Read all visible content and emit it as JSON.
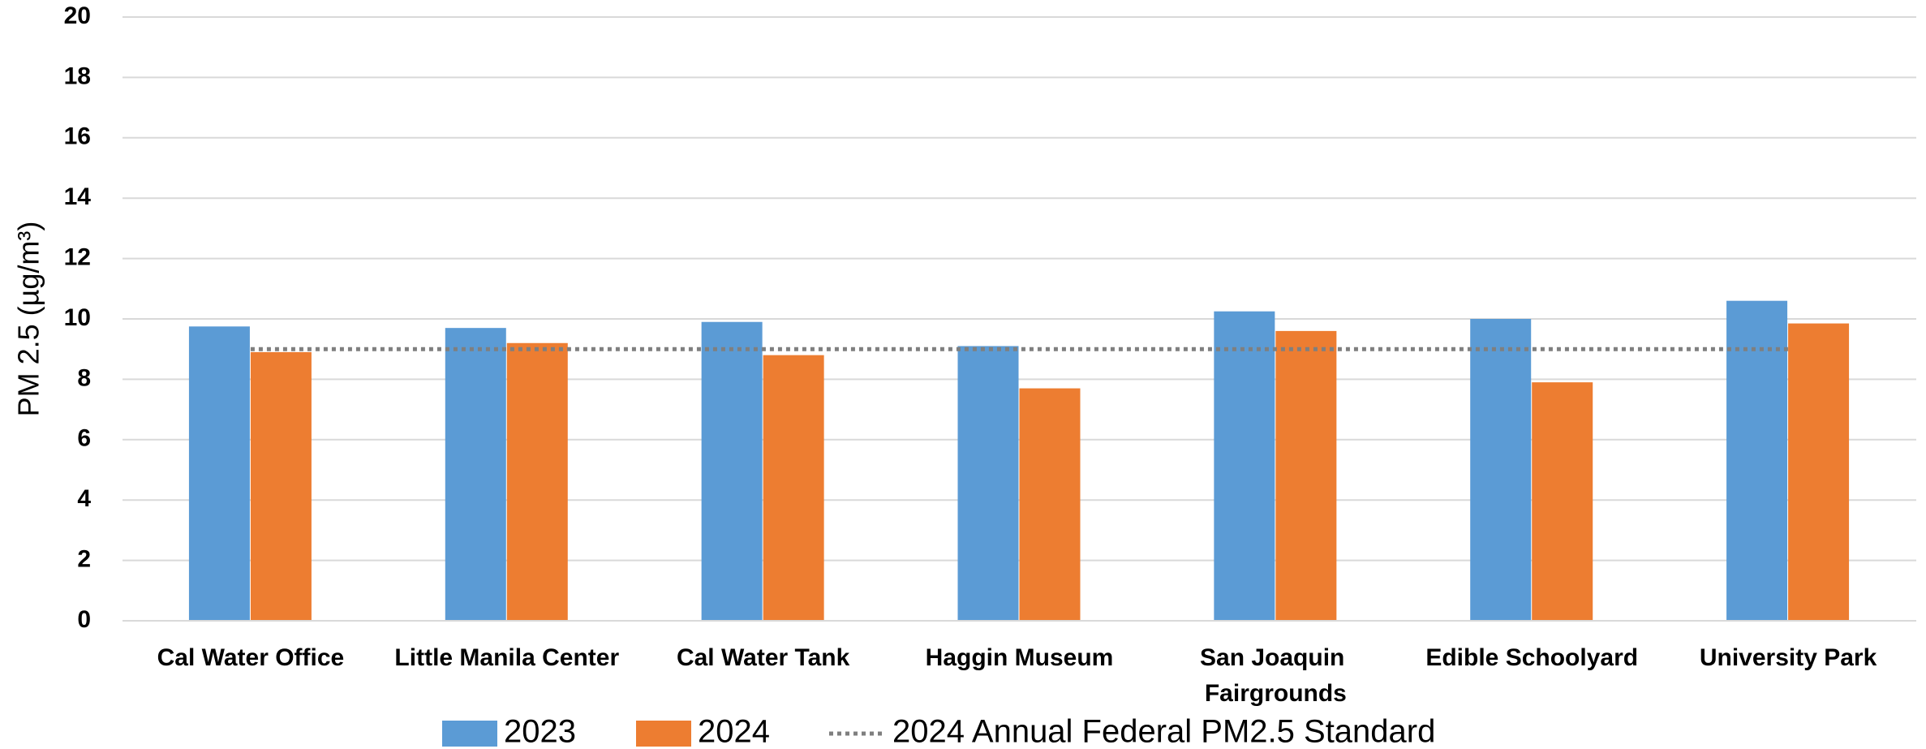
{
  "chart_data": {
    "type": "bar",
    "y_label": "PM 2.5 (µg/m³)",
    "categories": [
      "Cal Water Office",
      "Little Manila Center",
      "Cal Water Tank",
      "Haggin Museum",
      "San Joaquin Fairgrounds",
      "Edible Schoolyard",
      "University Park"
    ],
    "series": [
      {
        "name": "2023",
        "color": "#5b9bd5",
        "values": [
          9.75,
          9.7,
          9.9,
          9.1,
          10.25,
          10.0,
          10.6
        ]
      },
      {
        "name": "2024",
        "color": "#ed7d31",
        "values": [
          8.9,
          9.2,
          8.8,
          7.7,
          9.6,
          7.9,
          9.85
        ]
      },
      {
        "name": "2024 Annual Federal PM2.5 Standard",
        "type": "line",
        "color": "#7f7f7f",
        "values": [
          9,
          9,
          9,
          9,
          9,
          9,
          9
        ]
      }
    ],
    "ylim": [
      0,
      20
    ],
    "yticks": [
      0,
      2,
      4,
      6,
      8,
      10,
      12,
      14,
      16,
      18,
      20
    ],
    "grid": true
  }
}
